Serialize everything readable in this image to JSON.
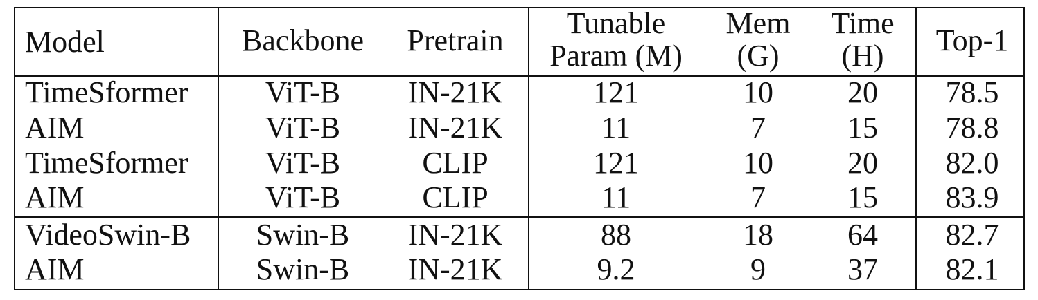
{
  "table": {
    "headers": {
      "model": "Model",
      "backbone": "Backbone",
      "pretrain": "Pretrain",
      "tunable_line1": "Tunable",
      "tunable_line2": "Param (M)",
      "mem_line1": "Mem",
      "mem_line2": "(G)",
      "time_line1": "Time",
      "time_line2": "(H)",
      "top1": "Top-1"
    },
    "rows": [
      {
        "model": "TimeSformer",
        "backbone": "ViT-B",
        "pretrain": "IN-21K",
        "params": "121",
        "mem": "10",
        "time": "20",
        "top1": "78.5"
      },
      {
        "model": "AIM",
        "backbone": "ViT-B",
        "pretrain": "IN-21K",
        "params": "11",
        "mem": "7",
        "time": "15",
        "top1": "78.8"
      },
      {
        "model": "TimeSformer",
        "backbone": "ViT-B",
        "pretrain": "CLIP",
        "params": "121",
        "mem": "10",
        "time": "20",
        "top1": "82.0"
      },
      {
        "model": "AIM",
        "backbone": "ViT-B",
        "pretrain": "CLIP",
        "params": "11",
        "mem": "7",
        "time": "15",
        "top1": "83.9"
      },
      {
        "model": "VideoSwin-B",
        "backbone": "Swin-B",
        "pretrain": "IN-21K",
        "params": "88",
        "mem": "18",
        "time": "64",
        "top1": "82.7"
      },
      {
        "model": "AIM",
        "backbone": "Swin-B",
        "pretrain": "IN-21K",
        "params": "9.2",
        "mem": "9",
        "time": "37",
        "top1": "82.1"
      }
    ]
  }
}
